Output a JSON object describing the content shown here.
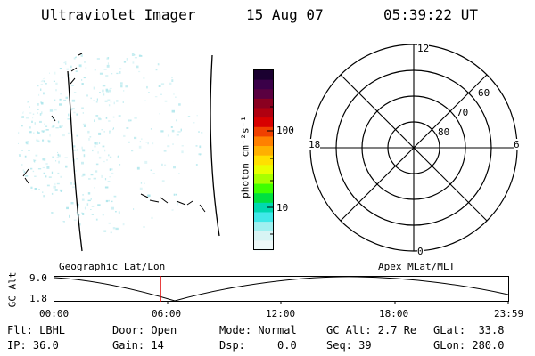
{
  "header": {
    "instrument": "Ultraviolet Imager",
    "date": "15 Aug 07",
    "time": "05:39:22 UT"
  },
  "colorbar": {
    "label": "photon cm⁻²s⁻¹",
    "tick_100": "100",
    "tick_10": "10"
  },
  "polar": {
    "mlt_top": "12",
    "mlt_bottom": "0",
    "mlt_left": "18",
    "mlt_right": "6",
    "lat_60": "60",
    "lat_70": "70",
    "lat_80": "80"
  },
  "timeline": {
    "ylabel": "GC Alt",
    "y_top": "9.0",
    "y_bottom": "1.8",
    "left_label": "Geographic Lat/Lon",
    "right_label": "Apex MLat/MLT",
    "ticks": [
      "00:00",
      "06:00",
      "12:00",
      "18:00",
      "23:59"
    ]
  },
  "info": {
    "flt": "Flt: LBHL",
    "ip": "IP: 36.0",
    "door": "Door: Open",
    "gain": "Gain: 14",
    "mode": "Mode: Normal",
    "dsp": "Dsp:     0.0",
    "gcalt": "GC Alt: 2.7 Re",
    "seq": "Seq: 39",
    "glat": "GLat:  33.8",
    "glon": "GLon: 280.0"
  },
  "colors": {
    "aurora": "#a8e4ea",
    "marker": "#e00000"
  }
}
